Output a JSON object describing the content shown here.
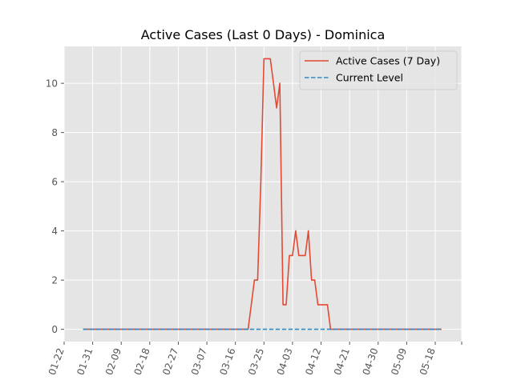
{
  "chart_data": {
    "type": "line",
    "title": "Active Cases (Last 0 Days) - Dominica",
    "xlabel": "",
    "ylabel": "",
    "x_tick_labels": [
      "01-22",
      "01-31",
      "02-09",
      "02-18",
      "02-27",
      "03-07",
      "03-16",
      "03-25",
      "04-03",
      "04-12",
      "04-21",
      "04-30",
      "05-09",
      "05-18"
    ],
    "ylim": [
      -0.5,
      11.5
    ],
    "y_ticks": [
      0,
      2,
      4,
      6,
      8,
      10
    ],
    "grid": true,
    "legend_position": "top-right",
    "series": [
      {
        "name": "Active Cases (7 Day)",
        "style": "solid",
        "color": "#E24A33",
        "x": [
          "01-28",
          "03-20",
          "03-21",
          "03-22",
          "03-23",
          "03-24",
          "03-25",
          "03-26",
          "03-27",
          "03-28",
          "03-29",
          "03-30",
          "03-31",
          "04-01",
          "04-02",
          "04-03",
          "04-04",
          "04-05",
          "04-06",
          "04-07",
          "04-08",
          "04-09",
          "04-10",
          "04-11",
          "04-12",
          "04-13",
          "04-14",
          "04-15",
          "04-16",
          "04-17",
          "04-18",
          "04-19",
          "04-20",
          "05-20"
        ],
        "values": [
          0,
          0,
          1,
          2,
          2,
          6,
          11,
          11,
          11,
          10,
          9,
          10,
          1,
          1,
          3,
          3,
          4,
          3,
          3,
          3,
          4,
          2,
          2,
          1,
          1,
          1,
          1,
          0,
          0,
          0,
          0,
          0,
          0,
          0
        ]
      },
      {
        "name": "Current Level",
        "style": "dashed",
        "color": "#348ABD",
        "x": [
          "01-28",
          "05-20"
        ],
        "values": [
          0,
          0
        ]
      }
    ]
  },
  "colors": {
    "plot_background": "#E5E5E5",
    "grid": "#FFFFFF",
    "tick_text": "#555555"
  }
}
